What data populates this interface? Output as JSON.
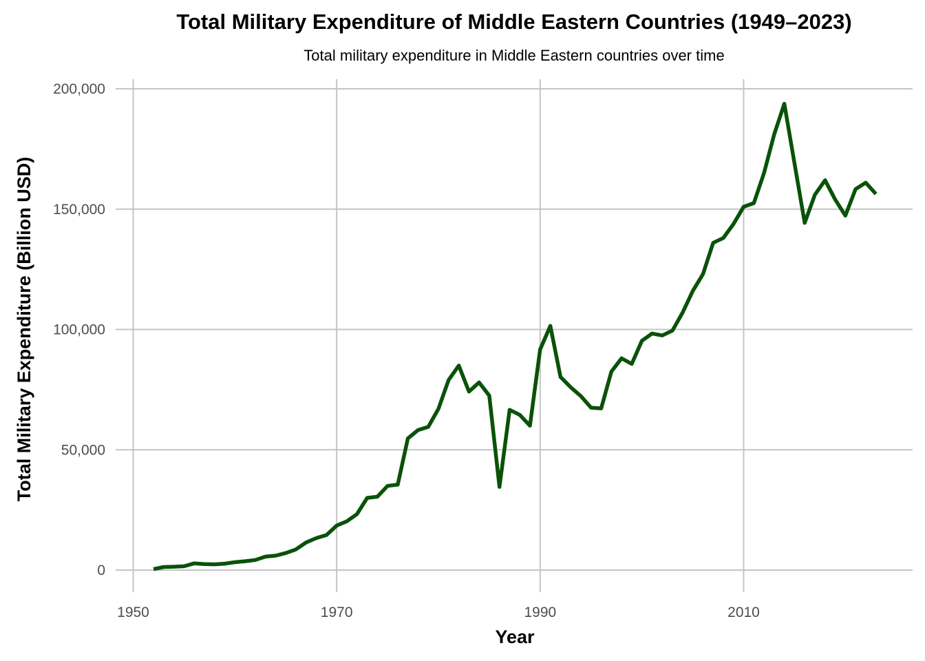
{
  "chart_data": {
    "type": "line",
    "title": "Total Military Expenditure of Middle Eastern Countries (1949–2023)",
    "subtitle": "Total military expenditure in Middle Eastern countries over time",
    "xlabel": "Year",
    "ylabel": "Total Military Expenditure (Billion USD)",
    "xlim": [
      1950,
      2023
    ],
    "ylim": [
      0,
      200000
    ],
    "x_ticks": [
      1950,
      1970,
      1990,
      2010
    ],
    "x_tick_labels": [
      "1950",
      "1970",
      "1990",
      "2010"
    ],
    "y_ticks": [
      0,
      50000,
      100000,
      150000,
      200000
    ],
    "y_tick_labels": [
      "0",
      "50,000",
      "100,000",
      "150,000",
      "200,000"
    ],
    "grid": true,
    "line_color": "#0a520a",
    "grid_color": "#c4c4c4",
    "x": [
      1952,
      1953,
      1954,
      1955,
      1956,
      1957,
      1958,
      1959,
      1960,
      1961,
      1962,
      1963,
      1964,
      1965,
      1966,
      1967,
      1968,
      1969,
      1970,
      1971,
      1972,
      1973,
      1974,
      1975,
      1976,
      1977,
      1978,
      1979,
      1980,
      1981,
      1982,
      1983,
      1984,
      1985,
      1986,
      1987,
      1988,
      1989,
      1990,
      1991,
      1992,
      1993,
      1994,
      1995,
      1996,
      1997,
      1998,
      1999,
      2000,
      2001,
      2002,
      2003,
      2004,
      2005,
      2006,
      2007,
      2008,
      2009,
      2010,
      2011,
      2012,
      2013,
      2014,
      2015,
      2016,
      2017,
      2018,
      2019,
      2020,
      2021,
      2022,
      2023
    ],
    "values": [
      400,
      1300,
      1400,
      1600,
      2800,
      2500,
      2400,
      2700,
      3300,
      3700,
      4200,
      5600,
      6000,
      7100,
      8600,
      11500,
      13300,
      14600,
      18500,
      20300,
      23300,
      30000,
      30500,
      35000,
      35500,
      54700,
      58200,
      59500,
      67000,
      79000,
      85000,
      74200,
      78000,
      72500,
      34600,
      66600,
      64500,
      60000,
      91700,
      101500,
      80300,
      76000,
      72300,
      67500,
      67200,
      82500,
      88000,
      85700,
      95300,
      98300,
      97500,
      99500,
      107000,
      116000,
      123000,
      136000,
      138000,
      143800,
      151000,
      152500,
      165000,
      181000,
      193800,
      169000,
      144300,
      156000,
      162000,
      154000,
      147300,
      158300,
      161000,
      156300
    ]
  }
}
